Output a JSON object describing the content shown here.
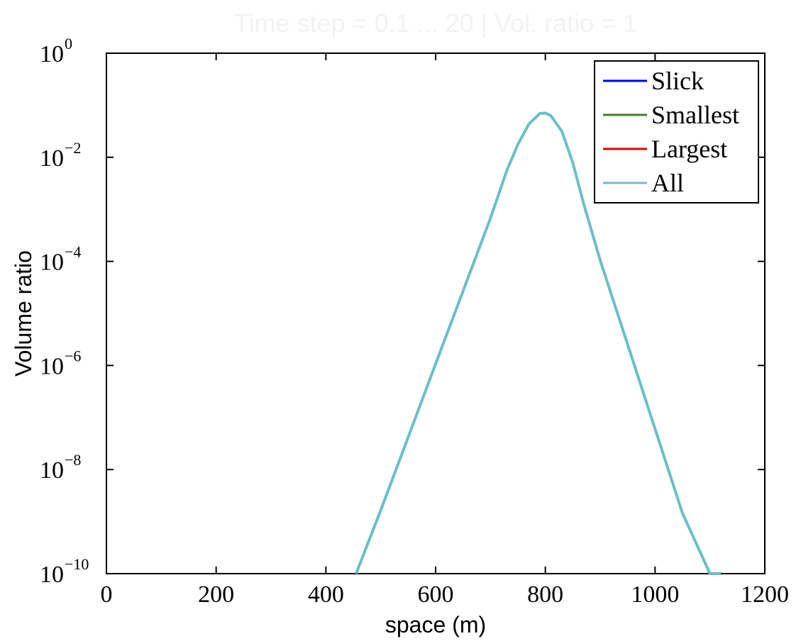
{
  "chart_data": {
    "type": "line",
    "title": "Time step = 0.1 ... 20 | Vol. ratio = 1",
    "xlabel": "space (m)",
    "ylabel": "Volume ratio",
    "xlim": [
      0,
      1200
    ],
    "ylim_log10": [
      -10,
      0
    ],
    "yscale": "log",
    "x_ticks": [
      0,
      200,
      400,
      600,
      800,
      1000,
      1200
    ],
    "x_tick_labels": [
      "0",
      "200",
      "400",
      "600",
      "800",
      "1000",
      "1200"
    ],
    "y_ticks_log10": [
      0,
      -2,
      -4,
      -6,
      -8,
      -10
    ],
    "y_tick_base": "10",
    "y_tick_exponents": [
      "0",
      "−2",
      "−4",
      "−6",
      "−8",
      "−10"
    ],
    "legend_position": "top-right",
    "series": [
      {
        "name": "Slick",
        "color": "#0000ff",
        "x": [
          455,
          500,
          550,
          600,
          650,
          700,
          730,
          750,
          770,
          790,
          800,
          810,
          830,
          850,
          870,
          900,
          950,
          1000,
          1050,
          1100,
          1120
        ],
        "log10_y": [
          -10,
          -8.78,
          -7.38,
          -5.97,
          -4.57,
          -3.17,
          -2.25,
          -1.75,
          -1.36,
          -1.16,
          -1.15,
          -1.2,
          -1.5,
          -2.1,
          -2.9,
          -3.98,
          -5.6,
          -7.22,
          -8.84,
          -10,
          -10
        ]
      },
      {
        "name": "Smallest",
        "color": "#4a7a26",
        "x": [
          455,
          500,
          550,
          600,
          650,
          700,
          730,
          750,
          770,
          790,
          800,
          810,
          830,
          850,
          870,
          900,
          950,
          1000,
          1050,
          1100,
          1120
        ],
        "log10_y": [
          -10,
          -8.78,
          -7.38,
          -5.97,
          -4.57,
          -3.17,
          -2.25,
          -1.75,
          -1.36,
          -1.16,
          -1.15,
          -1.2,
          -1.5,
          -2.1,
          -2.9,
          -3.98,
          -5.6,
          -7.22,
          -8.84,
          -10,
          -10
        ]
      },
      {
        "name": "Largest",
        "color": "#dd0000",
        "x": [
          455,
          500,
          550,
          600,
          650,
          700,
          730,
          750,
          770,
          790,
          800,
          810,
          830,
          850,
          870,
          900,
          950,
          1000,
          1050,
          1100,
          1120
        ],
        "log10_y": [
          -10,
          -8.78,
          -7.38,
          -5.97,
          -4.57,
          -3.17,
          -2.25,
          -1.75,
          -1.36,
          -1.16,
          -1.15,
          -1.2,
          -1.5,
          -2.1,
          -2.9,
          -3.98,
          -5.6,
          -7.22,
          -8.84,
          -10,
          -10
        ]
      },
      {
        "name": "All",
        "color": "#6cbfc6",
        "x": [
          455,
          500,
          550,
          600,
          650,
          700,
          730,
          750,
          770,
          790,
          800,
          810,
          830,
          850,
          870,
          900,
          950,
          1000,
          1050,
          1100,
          1120
        ],
        "log10_y": [
          -10,
          -8.78,
          -7.38,
          -5.97,
          -4.57,
          -3.17,
          -2.25,
          -1.75,
          -1.36,
          -1.16,
          -1.15,
          -1.2,
          -1.5,
          -2.1,
          -2.9,
          -3.98,
          -5.6,
          -7.22,
          -8.84,
          -10,
          -10
        ]
      }
    ]
  }
}
